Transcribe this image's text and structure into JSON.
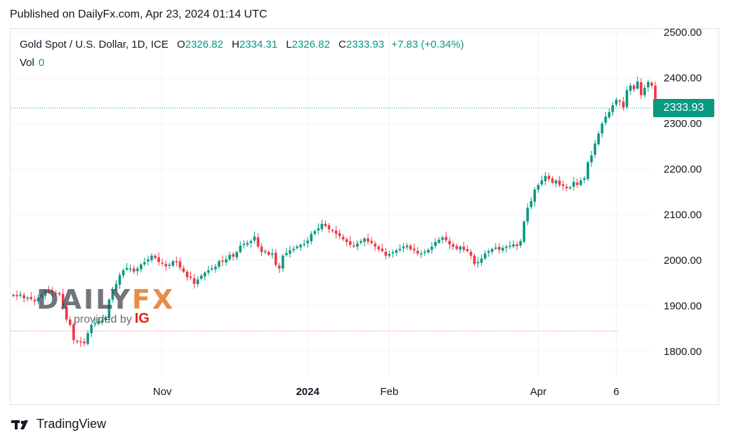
{
  "published": "Published on DailyFx.com, Apr 23, 2024 01:14 UTC",
  "legend": {
    "symbol": "Gold Spot / U.S. Dollar, 1D, ICE",
    "o_label": "O",
    "o_value": "2326.82",
    "h_label": "H",
    "h_value": "2334.31",
    "l_label": "L",
    "l_value": "2326.82",
    "c_label": "C",
    "c_value": "2333.93",
    "change": "+7.83 (+0.34%)",
    "vol_label": "Vol",
    "vol_value": "0"
  },
  "price_tag": "2333.93",
  "watermark": {
    "brand": "DAILY",
    "brand_accent": "FX",
    "provided_by": "provided by",
    "ig": "IG"
  },
  "footer": {
    "brand": "TradingView"
  },
  "colors": {
    "up": "#089981",
    "down": "#f23645",
    "grid": "#f0f3fa",
    "axis_text": "#131722"
  },
  "chart_data": {
    "type": "candlestick",
    "title": "Gold Spot / U.S. Dollar, 1D, ICE",
    "ylim": [
      1740,
      2520
    ],
    "y_ticks": [
      "2500.00",
      "2400.00",
      "2300.00",
      "2200.00",
      "2100.00",
      "2000.00",
      "1900.00",
      "1800.00"
    ],
    "y_tick_values": [
      2500,
      2400,
      2300,
      2200,
      2100,
      2000,
      1900,
      1800
    ],
    "x_ticks": [
      {
        "label": "Nov",
        "index": 42,
        "bold": false
      },
      {
        "label": "2024",
        "index": 83,
        "bold": true
      },
      {
        "label": "Feb",
        "index": 106,
        "bold": false
      },
      {
        "label": "Apr",
        "index": 148,
        "bold": false
      },
      {
        "label": "6",
        "index": 170,
        "bold": false
      }
    ],
    "last_price": 2333.93,
    "reference_line": 1845,
    "closes": [
      1924,
      1921,
      1925,
      1917,
      1918,
      1915,
      1910,
      1918,
      1924,
      1934,
      1932,
      1930,
      1928,
      1925,
      1900,
      1870,
      1858,
      1825,
      1822,
      1820,
      1818,
      1840,
      1858,
      1862,
      1866,
      1868,
      1875,
      1914,
      1932,
      1948,
      1967,
      1978,
      1983,
      1982,
      1975,
      1982,
      1991,
      1996,
      2002,
      2010,
      2005,
      1996,
      1992,
      1987,
      1990,
      1998,
      1996,
      1984,
      1975,
      1963,
      1962,
      1948,
      1958,
      1966,
      1973,
      1978,
      1982,
      1986,
      1998,
      1997,
      2002,
      2012,
      2008,
      2018,
      2032,
      2036,
      2038,
      2042,
      2052,
      2030,
      2018,
      2020,
      2012,
      2015,
      1990,
      1982,
      2010,
      2016,
      2022,
      2025,
      2030,
      2034,
      2036,
      2043,
      2058,
      2064,
      2070,
      2080,
      2075,
      2068,
      2065,
      2058,
      2053,
      2046,
      2040,
      2034,
      2030,
      2037,
      2042,
      2048,
      2041,
      2038,
      2030,
      2024,
      2020,
      2010,
      2014,
      2018,
      2022,
      2025,
      2030,
      2032,
      2024,
      2022,
      2015,
      2015,
      2019,
      2023,
      2030,
      2040,
      2045,
      2050,
      2044,
      2035,
      2030,
      2025,
      2030,
      2023,
      2020,
      2010,
      1992,
      1996,
      2004,
      2015,
      2020,
      2025,
      2028,
      2023,
      2027,
      2030,
      2032,
      2035,
      2031,
      2042,
      2085,
      2115,
      2130,
      2155,
      2165,
      2175,
      2185,
      2178,
      2170,
      2175,
      2165,
      2163,
      2158,
      2160,
      2172,
      2165,
      2175,
      2180,
      2215,
      2230,
      2256,
      2278,
      2300,
      2315,
      2325,
      2340,
      2352,
      2348,
      2335,
      2373,
      2383,
      2375,
      2392,
      2362,
      2378,
      2391,
      2383,
      2333.93
    ]
  }
}
